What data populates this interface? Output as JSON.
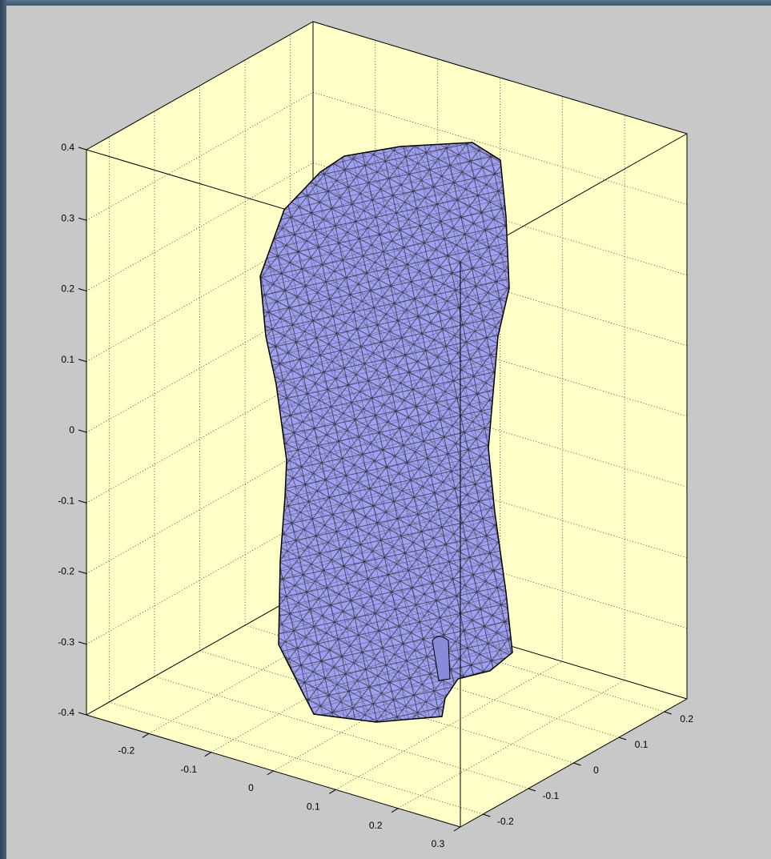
{
  "chart_data": {
    "type": "mesh3d",
    "color": "#a0a0f0",
    "edge_color": "#000000",
    "xlim": [
      -0.3,
      0.3
    ],
    "xticks": [
      -0.2,
      -0.1,
      0,
      0.1,
      0.2,
      0.3
    ],
    "ylim": [
      -0.25,
      0.25
    ],
    "yticks": [
      -0.2,
      -0.1,
      0,
      0.1,
      0.2
    ],
    "zlim": [
      -0.4,
      0.4
    ],
    "zticks": [
      -0.4,
      -0.3,
      -0.2,
      -0.1,
      0,
      0.1,
      0.2,
      0.3,
      0.4
    ],
    "grid": true,
    "axes_color": "#ffffc8"
  }
}
